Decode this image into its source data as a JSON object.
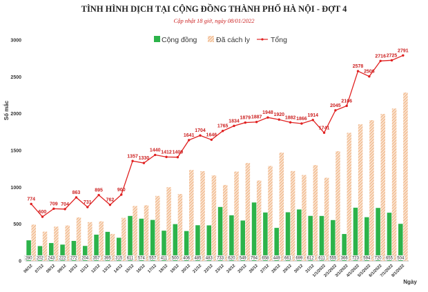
{
  "chart_data": {
    "type": "bar",
    "title": "TÌNH HÌNH DỊCH TẠI CỘNG ĐỒNG THÀNH PHỐ HÀ NỘI - ĐỢT 4",
    "subtitle": "Cập nhật 18 giờ, ngày 08/01/2022",
    "xlabel": "Ngày",
    "ylabel": "Số mắc",
    "ylim": [
      0,
      3000
    ],
    "yticks": [
      "0",
      "500",
      "1000",
      "1500",
      "2000",
      "2500",
      "3000"
    ],
    "grid": false,
    "legend_position": "top",
    "categories": [
      "06/12",
      "07/12",
      "08/12",
      "09/12",
      "10/12",
      "11/12",
      "12/12",
      "13/12",
      "14/12",
      "15/12",
      "16/12",
      "17/12",
      "18/12",
      "19/12",
      "20/12",
      "21/12",
      "22/12",
      "23/12",
      "24/12",
      "25/12",
      "26/12",
      "27/12",
      "28/12",
      "29/12",
      "30/12",
      "31/12",
      "1/1/2022",
      "2/1/2022",
      "3/1/2022",
      "4/1/2022",
      "5/1/2022",
      "6/1/2022",
      "7/1/2022",
      "8/1/2022"
    ],
    "series": [
      {
        "name": "Cộng đồng",
        "type": "bar",
        "color": "#2cb34a",
        "values": [
          280,
          202,
          243,
          222,
          272,
          204,
          357,
          395,
          315,
          611,
          574,
          557,
          411,
          500,
          406,
          485,
          483,
          733,
          620,
          549,
          794,
          658,
          449,
          661,
          699,
          612,
          611,
          555,
          366,
          723,
          594,
          720,
          655,
          504
        ]
      },
      {
        "name": "Đã cách ly",
        "type": "bar",
        "color": "#f2b98a",
        "pattern": "hatched",
        "values": [
          494,
          398,
          466,
          482,
          591,
          527,
          538,
          367,
          585,
          746,
          756,
          883,
          1001,
          909,
          1235,
          1219,
          1163,
          1032,
          1214,
          1330,
          1093,
          1290,
          1471,
          1221,
          1167,
          1302,
          1130,
          1490,
          1740,
          1855,
          1912,
          1996,
          2070,
          2287
        ]
      },
      {
        "name": "Tổng",
        "type": "line",
        "color": "#e02020",
        "values": [
          774,
          600,
          709,
          704,
          863,
          731,
          895,
          762,
          900,
          1357,
          1330,
          1440,
          1412,
          1409,
          1641,
          1704,
          1646,
          1765,
          1834,
          1879,
          1887,
          1948,
          1920,
          1882,
          1866,
          1914,
          1741,
          2045,
          2106,
          2578,
          2506,
          2716,
          2725,
          2791
        ]
      }
    ]
  }
}
